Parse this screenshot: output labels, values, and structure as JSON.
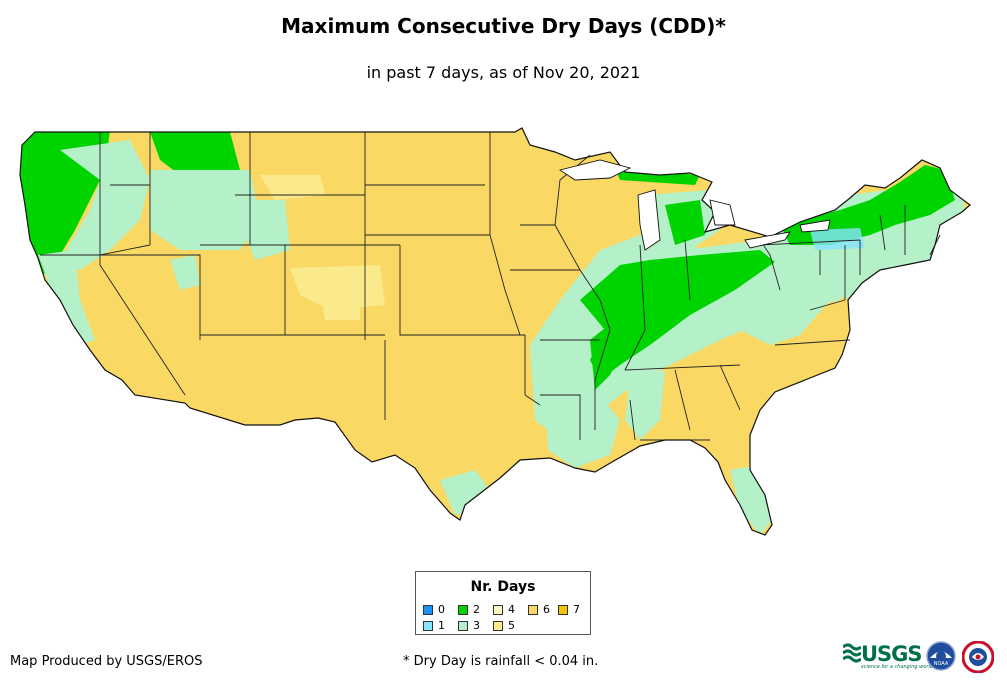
{
  "header": {
    "title": "Maximum Consecutive Dry Days (CDD)*",
    "subtitle": "in past 7 days, as of Nov 20, 2021"
  },
  "legend": {
    "title": "Nr. Days",
    "items": [
      {
        "label": "0",
        "color": "#1e90ff"
      },
      {
        "label": "1",
        "color": "#87e5ff"
      },
      {
        "label": "2",
        "color": "#00d400"
      },
      {
        "label": "3",
        "color": "#b4f0c8"
      },
      {
        "label": "4",
        "color": "#f7f7c0"
      },
      {
        "label": "5",
        "color": "#fbea8c"
      },
      {
        "label": "6",
        "color": "#fad864"
      },
      {
        "label": "7",
        "color": "#f5c200"
      }
    ]
  },
  "footer": {
    "credit": "Map Produced by USGS/EROS",
    "note": "* Dry Day is rainfall < 0.04 in."
  },
  "logos": {
    "usgs_text": "USGS",
    "usgs_tagline": "science for a changing world",
    "noaa_text": "NOAA"
  },
  "map": {
    "region": "Contiguous United States",
    "zones": [
      {
        "name": "pacific-northwest-wet",
        "days": "2"
      },
      {
        "name": "west-dry",
        "days": "6"
      },
      {
        "name": "mississippi-ohio-valley-wet",
        "days": "2"
      },
      {
        "name": "northeast-wet",
        "days": "2"
      },
      {
        "name": "southeast-dry",
        "days": "6"
      }
    ]
  }
}
